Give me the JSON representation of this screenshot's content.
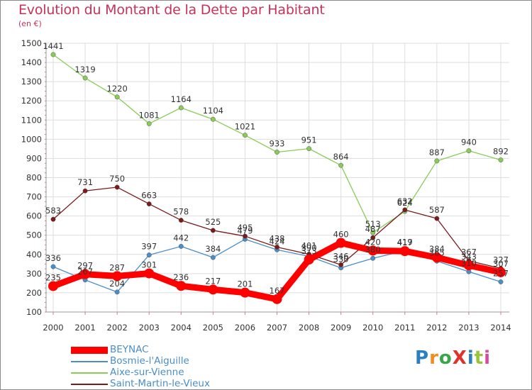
{
  "title": "Evolution du Montant de la Dette par Habitant",
  "subtitle": "(en €)",
  "logo": "ProXiti",
  "chart_data": {
    "type": "line",
    "title": "Evolution du Montant de la Dette par Habitant",
    "ylabel": "(en €)",
    "xlabel": "",
    "x": [
      "2000",
      "2001",
      "2002",
      "2003",
      "2004",
      "2005",
      "2006",
      "2007",
      "2008",
      "2009",
      "2010",
      "2011",
      "2012",
      "2013",
      "2014"
    ],
    "ylim": [
      100,
      1500
    ],
    "yticks": [
      100,
      200,
      300,
      400,
      500,
      600,
      700,
      800,
      900,
      1000,
      1100,
      1200,
      1300,
      1400,
      1500
    ],
    "grid": true,
    "legend_position": "bottom-left",
    "series": [
      {
        "name": "BEYNAC",
        "color": "#ff0000",
        "values": [
          235,
          297,
          287,
          301,
          236,
          217,
          201,
          167,
          373,
          460,
          420,
          417,
          384,
          343,
          307
        ]
      },
      {
        "name": "Bosmie-l'Aiguille",
        "color": "#4a8ec8",
        "values": [
          336,
          267,
          204,
          397,
          442,
          384,
          479,
          424,
          390,
          330,
          380,
          419,
          365,
          310,
          257
        ]
      },
      {
        "name": "Aixe-sur-Vienne",
        "color": "#88cc55",
        "values": [
          1441,
          1319,
          1220,
          1081,
          1164,
          1104,
          1021,
          933,
          951,
          864,
          513,
          624,
          887,
          940,
          892
        ]
      },
      {
        "name": "Saint-Martin-le-Vieux",
        "color": "#7a1a1a",
        "values": [
          583,
          731,
          750,
          663,
          578,
          525,
          495,
          438,
          401,
          346,
          487,
          632,
          587,
          367,
          327
        ]
      }
    ]
  }
}
